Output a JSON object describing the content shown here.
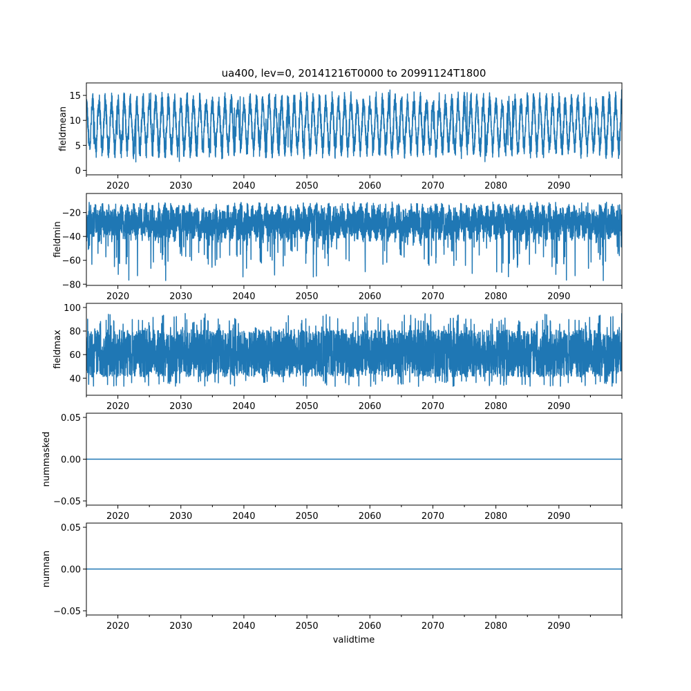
{
  "chart_data": {
    "title": "ua400, lev=0, 20141216T0000 to 20991124T1800",
    "xlabel": "validtime",
    "xlim": [
      2015.0,
      2100.0
    ],
    "xticks": [
      2020,
      2030,
      2040,
      2050,
      2060,
      2070,
      2080,
      2090
    ],
    "xtick_labels": [
      "2020",
      "2030",
      "2040",
      "2050",
      "2060",
      "2070",
      "2080",
      "2090"
    ],
    "series_color": "#1f77b4",
    "panels": [
      {
        "type": "line",
        "name": "fieldmean",
        "ylabel": "fieldmean",
        "ylim": [
          -0.9,
          17.5
        ],
        "yticks": [
          0,
          5,
          10,
          15
        ],
        "ytick_labels": [
          "0",
          "5",
          "10",
          "15"
        ],
        "approx_low": 0.0,
        "approx_high": 16.7,
        "typical_center": 9.0,
        "pattern": "seasonal"
      },
      {
        "type": "line",
        "name": "fieldmin",
        "ylabel": "fieldmin",
        "ylim": [
          -81.0,
          -4.0
        ],
        "yticks": [
          -80,
          -60,
          -40,
          -20
        ],
        "ytick_labels": [
          "−80",
          "−60",
          "−40",
          "−20"
        ],
        "approx_low": -78.0,
        "approx_high": -7.0,
        "typical_center": -28.0,
        "pattern": "noisy-low-spikes"
      },
      {
        "type": "line",
        "name": "fieldmax",
        "ylabel": "fieldmax",
        "ylim": [
          25.5,
          103.5
        ],
        "yticks": [
          40,
          60,
          80,
          100
        ],
        "ytick_labels": [
          "40",
          "60",
          "80",
          "100"
        ],
        "approx_low": 29.0,
        "approx_high": 100.0,
        "typical_center": 61.0,
        "pattern": "noisy-dense"
      },
      {
        "type": "line",
        "name": "nummasked",
        "ylabel": "nummasked",
        "ylim": [
          -0.055,
          0.055
        ],
        "yticks": [
          -0.05,
          0.0,
          0.05
        ],
        "ytick_labels": [
          "−0.05",
          "0.00",
          "0.05"
        ],
        "constant_value": 0.0,
        "pattern": "constant"
      },
      {
        "type": "line",
        "name": "numnan",
        "ylabel": "numnan",
        "ylim": [
          -0.055,
          0.055
        ],
        "yticks": [
          -0.05,
          0.0,
          0.05
        ],
        "ytick_labels": [
          "−0.05",
          "0.00",
          "0.05"
        ],
        "constant_value": 0.0,
        "pattern": "constant"
      }
    ]
  }
}
